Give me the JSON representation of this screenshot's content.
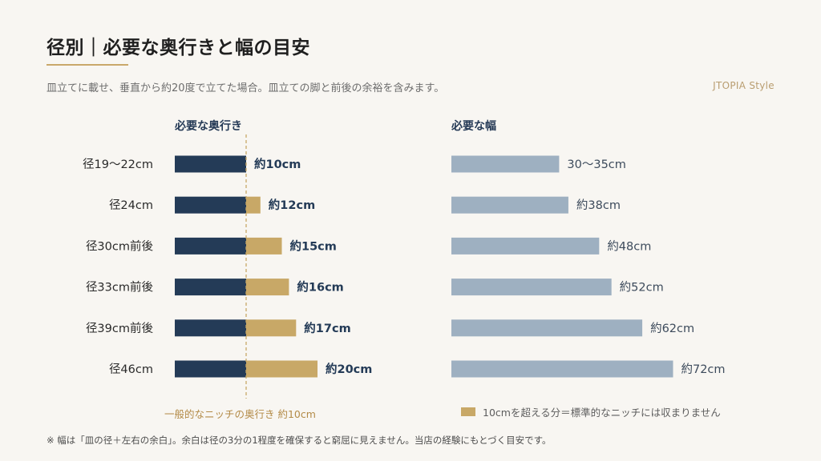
{
  "title": "径別｜必要な奥行きと幅の目安",
  "subtitle": "皿立てに載せ、垂直から約20度で立てた場合。皿立ての脚と前後の余裕を含みます。",
  "brand": "JTOPIA Style",
  "colors": {
    "navy": "#243b57",
    "gold": "#c8a867",
    "gray_blue": "#9eb0c1",
    "accent_line": "#c9a86a"
  },
  "chart_data": [
    {
      "type": "bar",
      "orientation": "horizontal",
      "stacked": true,
      "title": "必要な奥行き",
      "categories": [
        "径19〜22cm",
        "径24cm",
        "径30cm前後",
        "径33cm前後",
        "径39cm前後",
        "径46cm"
      ],
      "series": [
        {
          "name": "一般的なニッチの奥行き 約10cm",
          "values": [
            10,
            10,
            10,
            10,
            10,
            10
          ]
        },
        {
          "name": "10cmを超える分＝標準的なニッチには収まりません",
          "values": [
            0,
            2,
            5,
            6,
            7,
            10
          ]
        }
      ],
      "data_labels": [
        "約10cm",
        "約12cm",
        "約15cm",
        "約16cm",
        "約17cm",
        "約20cm"
      ],
      "reference_line": {
        "value": 10,
        "label": "一般的なニッチの奥行き 約10cm"
      },
      "xlim": [
        0,
        20
      ]
    },
    {
      "type": "bar",
      "orientation": "horizontal",
      "title": "必要な幅",
      "categories": [
        "径19〜22cm",
        "径24cm",
        "径30cm前後",
        "径33cm前後",
        "径39cm前後",
        "径46cm"
      ],
      "values": [
        35,
        38,
        48,
        52,
        62,
        72
      ],
      "data_labels": [
        "30〜35cm",
        "約38cm",
        "約48cm",
        "約52cm",
        "約62cm",
        "約72cm"
      ],
      "xlim": [
        0,
        72
      ]
    }
  ],
  "legend": {
    "left_label": "一般的なニッチの奥行き 約10cm",
    "right_label": "10cmを超える分＝標準的なニッチには収まりません"
  },
  "footnote": "※ 幅は「皿の径＋左右の余白」。余白は径の3分の1程度を確保すると窮屈に見えません。当店の経験にもとづく目安です。"
}
